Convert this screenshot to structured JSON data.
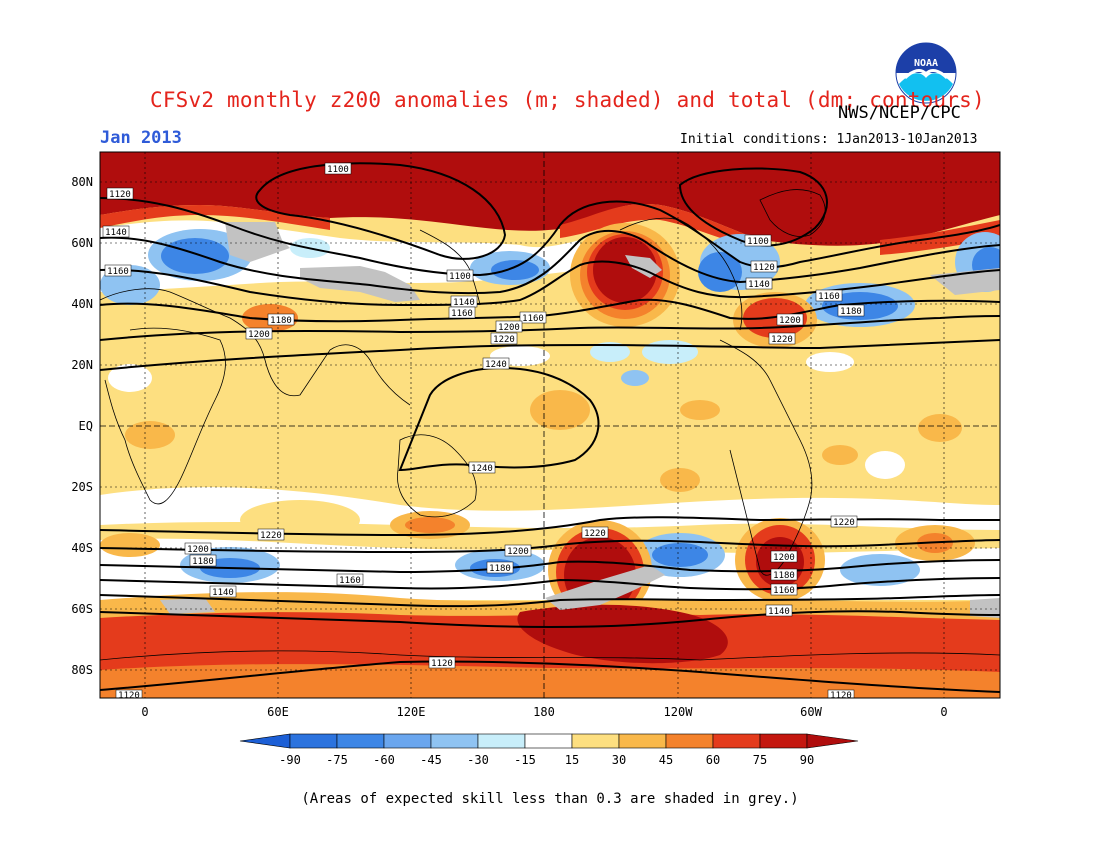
{
  "header": {
    "title": "CFSv2 monthly z200 anomalies (m; shaded) and total (dm; contours)",
    "agency": "NWS/NCEP/CPC",
    "month": "Jan 2013",
    "initial_conditions": "Initial conditions: 1Jan2013-10Jan2013",
    "logo_text": "NOAA"
  },
  "footnote": "(Areas of expected skill less than 0.3 are shaded in grey.)",
  "colors": {
    "blue_dark": "#1c5fd6",
    "blue_mid": "#3d86e6",
    "blue_light": "#8fc3f2",
    "cyan_pale": "#c8eefa",
    "white": "#ffffff",
    "yellow": "#fddf80",
    "orange_light": "#f9b84a",
    "orange": "#f4822c",
    "red": "#e43b1c",
    "dark_red": "#b00d0d",
    "grey": "#c2c2c2",
    "title_red": "#e4241c"
  },
  "map": {
    "lat_labels": [
      "80N",
      "60N",
      "40N",
      "20N",
      "EQ",
      "20S",
      "40S",
      "60S",
      "80S"
    ],
    "lon_labels": [
      "0",
      "60E",
      "120E",
      "180",
      "120W",
      "60W",
      "0"
    ],
    "contour_labels": {
      "c1100a": "1100",
      "c1120a": "1120",
      "c1140a": "1140",
      "c1160a": "1160",
      "c1100b": "1100",
      "c1140b": "1140",
      "c1160b": "1160",
      "c1180a": "1180",
      "c1200a": "1200",
      "c1220a": "1220",
      "c1160c": "1160",
      "c1200b": "1200",
      "c1240a": "1240",
      "c1100c": "1100",
      "c1120b": "1120",
      "c1140c": "1140",
      "c1160d": "1160",
      "c1180b": "1180",
      "c1200c": "1200",
      "c1220b": "1220",
      "c1240b": "1240",
      "c1220c": "1220",
      "c1200d": "1200",
      "c1180c": "1180",
      "c1140d": "1140",
      "c1160e": "1160",
      "c1200e": "1200",
      "c1180d": "1180",
      "c1220d": "1220",
      "c1200f": "1200",
      "c1180e": "1180",
      "c1160f": "1160",
      "c1140e": "1140",
      "c1220e": "1220",
      "c1120c": "1120",
      "c1120d": "1120",
      "c1120e": "1120"
    }
  },
  "colorbar": {
    "labels": [
      "-90",
      "-75",
      "-60",
      "-45",
      "-30",
      "-15",
      "15",
      "30",
      "45",
      "60",
      "75",
      "90"
    ],
    "boxes": [
      "#1c5fd6",
      "#2c73de",
      "#3d86e6",
      "#6aa6ee",
      "#8fc3f2",
      "#c8eefa",
      "#ffffff",
      "#fddf80",
      "#f9b84a",
      "#f4822c",
      "#e43b1c",
      "#c4170f",
      "#b00d0d"
    ]
  }
}
